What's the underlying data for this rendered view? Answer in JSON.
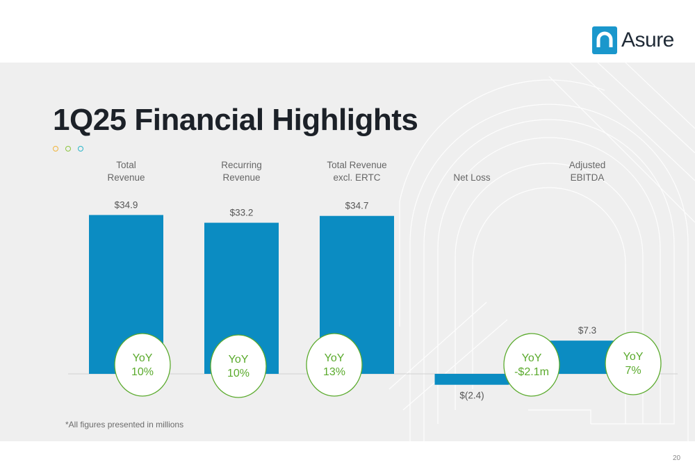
{
  "brand": {
    "name": "Asure",
    "accent": "#1a97cc"
  },
  "title": "1Q25 Financial Highlights",
  "dots": [
    "#f0b43a",
    "#8dc63f",
    "#2ab5c9"
  ],
  "footnote": "*All figures presented in millions",
  "page_number": "20",
  "chart_data": {
    "type": "bar",
    "categories": [
      [
        "Total",
        "Revenue"
      ],
      [
        "Recurring",
        "Revenue"
      ],
      [
        "Total Revenue",
        "excl. ERTC"
      ],
      [
        "Net Loss"
      ],
      [
        "Adjusted",
        "EBITDA"
      ]
    ],
    "values": [
      34.9,
      33.2,
      34.7,
      -2.4,
      7.3
    ],
    "value_labels": [
      "$34.9",
      "$33.2",
      "$34.7",
      "$(2.4)",
      "$7.3"
    ],
    "annotations": [
      [
        "YoY",
        "10%"
      ],
      [
        "YoY",
        "10%"
      ],
      [
        "YoY",
        "13%"
      ],
      [
        "YoY",
        "-$2.1m"
      ],
      [
        "YoY",
        "7%"
      ]
    ],
    "bar_color": "#0b8cc2",
    "annotation_color": "#5aaa2c"
  }
}
